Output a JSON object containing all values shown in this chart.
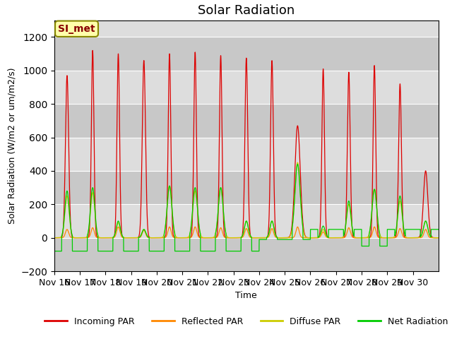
{
  "title": "Solar Radiation",
  "ylabel": "Solar Radiation (W/m2 or um/m2/s)",
  "xlabel": "Time",
  "ylim": [
    -200,
    1300
  ],
  "yticks": [
    -200,
    0,
    200,
    400,
    600,
    800,
    1000,
    1200
  ],
  "xtick_labels": [
    "Nov 16",
    "Nov 17",
    "Nov 18",
    "Nov 19",
    "Nov 20",
    "Nov 21",
    "Nov 22",
    "Nov 23",
    "Nov 24",
    "Nov 25",
    "Nov 26",
    "Nov 27",
    "Nov 28",
    "Nov 29",
    "Nov 30"
  ],
  "legend_labels": [
    "Incoming PAR",
    "Reflected PAR",
    "Diffuse PAR",
    "Net Radiation"
  ],
  "line_colors": [
    "#dd0000",
    "#ff8800",
    "#cccc00",
    "#00cc00"
  ],
  "annotation_text": "SI_met",
  "annotation_color": "#880000",
  "annotation_bg": "#ffffaa",
  "plot_bg": "#dddddd",
  "band_color": "#bbbbbb",
  "title_fontsize": 13,
  "axis_fontsize": 9
}
